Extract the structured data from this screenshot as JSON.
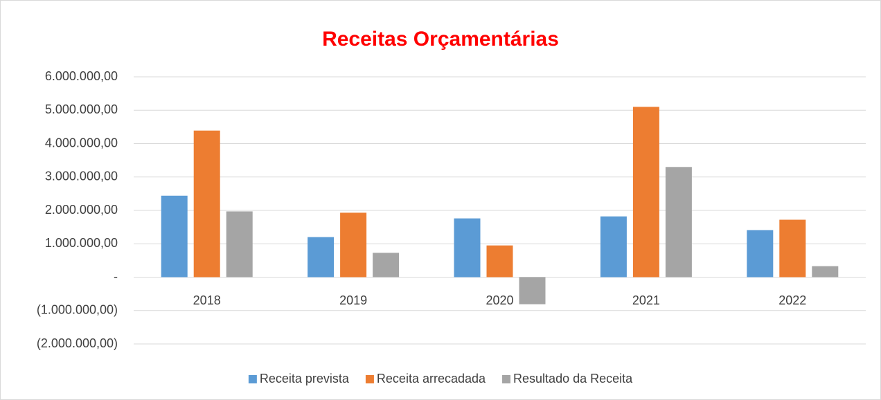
{
  "chart_data": {
    "type": "bar",
    "title": "Receitas Orçamentárias",
    "categories": [
      "2018",
      "2019",
      "2020",
      "2021",
      "2022"
    ],
    "series": [
      {
        "name": "Receita prevista",
        "color": "#5b9bd5",
        "values": [
          2440000,
          1200000,
          1760000,
          1820000,
          1410000
        ]
      },
      {
        "name": "Receita arrecadada",
        "color": "#ed7d31",
        "values": [
          4390000,
          1930000,
          950000,
          5100000,
          1720000
        ]
      },
      {
        "name": "Resultado da Receita",
        "color": "#a5a5a5",
        "values": [
          1970000,
          730000,
          -810000,
          3300000,
          330000
        ]
      }
    ],
    "ylim": [
      -2000000,
      6000000
    ],
    "yticks": [
      {
        "value": -2000000,
        "label": "(2.000.000,00)"
      },
      {
        "value": -1000000,
        "label": "(1.000.000,00)"
      },
      {
        "value": 0,
        "label": "-"
      },
      {
        "value": 1000000,
        "label": "1.000.000,00"
      },
      {
        "value": 2000000,
        "label": "2.000.000,00"
      },
      {
        "value": 3000000,
        "label": "3.000.000,00"
      },
      {
        "value": 4000000,
        "label": "4.000.000,00"
      },
      {
        "value": 5000000,
        "label": "5.000.000,00"
      },
      {
        "value": 6000000,
        "label": "6.000.000,00"
      }
    ],
    "grid": true,
    "legend": "bottom"
  }
}
